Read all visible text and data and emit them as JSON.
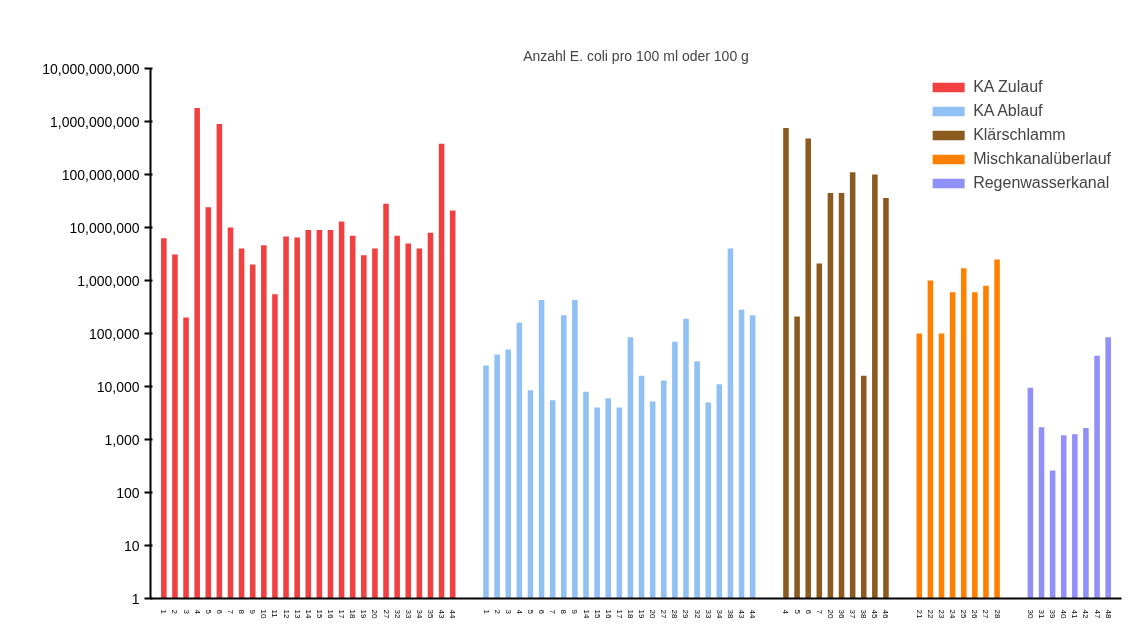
{
  "chart_data": {
    "type": "bar",
    "title": "Anzahl E. coli pro 100 ml oder 100 g",
    "categories": [
      "1",
      "2",
      "3",
      "4",
      "5",
      "6",
      "7",
      "8",
      "9",
      "10",
      "11",
      "12",
      "13",
      "14",
      "15",
      "16",
      "17",
      "18",
      "19",
      "20",
      "27",
      "32",
      "33",
      "34",
      "35",
      "43",
      "44",
      null,
      null,
      "1",
      "2",
      "3",
      "4",
      "5",
      "6",
      "7",
      "8",
      "9",
      "14",
      "15",
      "16",
      "17",
      "18",
      "19",
      "20",
      "27",
      "28",
      "29",
      "32",
      "33",
      "34",
      "38",
      "43",
      "44",
      null,
      null,
      "4",
      "5",
      "6",
      "7",
      "20",
      "36",
      "37",
      "38",
      "45",
      "46",
      null,
      null,
      "21",
      "22",
      "23",
      "24",
      "25",
      "26",
      "27",
      "28",
      null,
      null,
      "30",
      "31",
      "39",
      "40",
      "41",
      "42",
      "47",
      "48"
    ],
    "series": [
      {
        "name": "KA Zulauf",
        "color": "#f04040",
        "values": [
          6300000,
          3100000,
          200000,
          1800000000,
          24000000,
          900000000,
          10000000,
          4000000,
          2000000,
          4600000,
          550000,
          6800000,
          6500000,
          9000000,
          9000000,
          9000000,
          13000000,
          7000000,
          3000000,
          4000000,
          28000000,
          7000000,
          5000000,
          4000000,
          8000000,
          380000000,
          21000000,
          null,
          null,
          null,
          null,
          null,
          null,
          null,
          null,
          null,
          null,
          null,
          null,
          null,
          null,
          null,
          null,
          null,
          null,
          null,
          null,
          null,
          null,
          null,
          null,
          null,
          null,
          null,
          null,
          null,
          null,
          null,
          null,
          null,
          null,
          null,
          null,
          null,
          null,
          null,
          null,
          null,
          null,
          null,
          null,
          null,
          null,
          null,
          null,
          null,
          null,
          null,
          null,
          null,
          null,
          null,
          null,
          null,
          null,
          null
        ]
      },
      {
        "name": "KA Ablauf",
        "color": "#90c0f4",
        "values": [
          null,
          null,
          null,
          null,
          null,
          null,
          null,
          null,
          null,
          null,
          null,
          null,
          null,
          null,
          null,
          null,
          null,
          null,
          null,
          null,
          null,
          null,
          null,
          null,
          null,
          null,
          null,
          null,
          null,
          25000,
          40000,
          50000,
          160000,
          8500,
          430000,
          5500,
          220000,
          430000,
          8000,
          4000,
          6000,
          4000,
          85000,
          16000,
          5200,
          13000,
          70000,
          190000,
          30000,
          5000,
          11000,
          4000000,
          280000,
          220000,
          null,
          null,
          null,
          null,
          null,
          null,
          null,
          null,
          null,
          null,
          null,
          null,
          null,
          null,
          null,
          null,
          null,
          null,
          null,
          null,
          null,
          null,
          null,
          null,
          null,
          null,
          null,
          null,
          null,
          null,
          null,
          null
        ]
      },
      {
        "name": "Klärschlamm",
        "color": "#8b5a1e",
        "values": [
          null,
          null,
          null,
          null,
          null,
          null,
          null,
          null,
          null,
          null,
          null,
          null,
          null,
          null,
          null,
          null,
          null,
          null,
          null,
          null,
          null,
          null,
          null,
          null,
          null,
          null,
          null,
          null,
          null,
          null,
          null,
          null,
          null,
          null,
          null,
          null,
          null,
          null,
          null,
          null,
          null,
          null,
          null,
          null,
          null,
          null,
          null,
          null,
          null,
          null,
          null,
          null,
          null,
          null,
          null,
          null,
          750000000,
          210000,
          480000000,
          2100000,
          45000000,
          45000000,
          110000000,
          16000,
          100000000,
          36000000,
          null,
          null,
          null,
          null,
          null,
          null,
          null,
          null,
          null,
          null,
          null,
          null,
          null,
          null,
          null,
          null,
          null,
          null,
          null,
          null
        ]
      },
      {
        "name": "Mischkanalüberlauf",
        "color": "#ff8000",
        "values": [
          null,
          null,
          null,
          null,
          null,
          null,
          null,
          null,
          null,
          null,
          null,
          null,
          null,
          null,
          null,
          null,
          null,
          null,
          null,
          null,
          null,
          null,
          null,
          null,
          null,
          null,
          null,
          null,
          null,
          null,
          null,
          null,
          null,
          null,
          null,
          null,
          null,
          null,
          null,
          null,
          null,
          null,
          null,
          null,
          null,
          null,
          null,
          null,
          null,
          null,
          null,
          null,
          null,
          null,
          null,
          null,
          null,
          null,
          null,
          null,
          null,
          null,
          null,
          null,
          null,
          null,
          null,
          null,
          100000,
          1000000,
          100000,
          600000,
          1700000,
          600000,
          800000,
          2500000,
          null,
          null,
          null,
          null,
          null,
          null,
          null,
          null,
          null,
          null
        ]
      },
      {
        "name": "Regenwasserkanal",
        "color": "#9090f8",
        "values": [
          null,
          null,
          null,
          null,
          null,
          null,
          null,
          null,
          null,
          null,
          null,
          null,
          null,
          null,
          null,
          null,
          null,
          null,
          null,
          null,
          null,
          null,
          null,
          null,
          null,
          null,
          null,
          null,
          null,
          null,
          null,
          null,
          null,
          null,
          null,
          null,
          null,
          null,
          null,
          null,
          null,
          null,
          null,
          null,
          null,
          null,
          null,
          null,
          null,
          null,
          null,
          null,
          null,
          null,
          null,
          null,
          null,
          null,
          null,
          null,
          null,
          null,
          null,
          null,
          null,
          null,
          null,
          null,
          null,
          null,
          null,
          null,
          null,
          null,
          null,
          null,
          null,
          null,
          9500,
          1700,
          260,
          1200,
          1250,
          1650,
          38000,
          85000
        ]
      }
    ],
    "log": "y",
    "ylim": [
      1,
      10000000000
    ],
    "yticks": [
      1,
      10,
      100,
      {
        "value": 1000,
        "label": "1,000"
      },
      {
        "value": 10000,
        "label": "10,000"
      },
      {
        "value": 100000,
        "label": "100,000"
      },
      {
        "value": 1000000,
        "label": "1,000,000"
      },
      {
        "value": 10000000,
        "label": "10,000,000"
      },
      {
        "value": 100000000,
        "label": "100,000,000"
      },
      {
        "value": 1000000000,
        "label": "1,000,000,000"
      },
      {
        "value": 10000000000,
        "label": "10,000,000,000"
      }
    ],
    "grid": false,
    "legend": "top right"
  }
}
